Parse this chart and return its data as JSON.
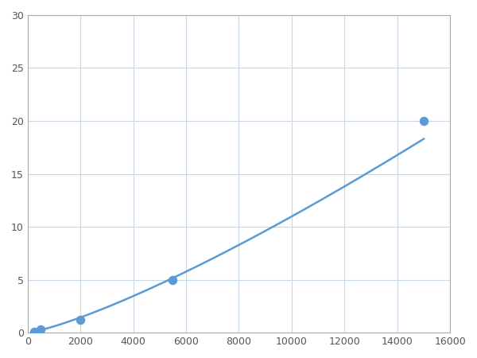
{
  "x": [
    250,
    500,
    2000,
    5500,
    15000
  ],
  "y": [
    0.1,
    0.3,
    1.2,
    5.0,
    20.0
  ],
  "line_color": "#5b9bd5",
  "marker_color": "#5b9bd5",
  "marker_size": 6,
  "linewidth": 1.8,
  "xlim": [
    0,
    16000
  ],
  "ylim": [
    0,
    30
  ],
  "xticks": [
    0,
    2000,
    4000,
    6000,
    8000,
    10000,
    12000,
    14000,
    16000
  ],
  "yticks": [
    0,
    5,
    10,
    15,
    20,
    25,
    30
  ],
  "grid_color": "#c8d8e8",
  "background_color": "#ffffff",
  "spine_color": "#aaaaaa"
}
